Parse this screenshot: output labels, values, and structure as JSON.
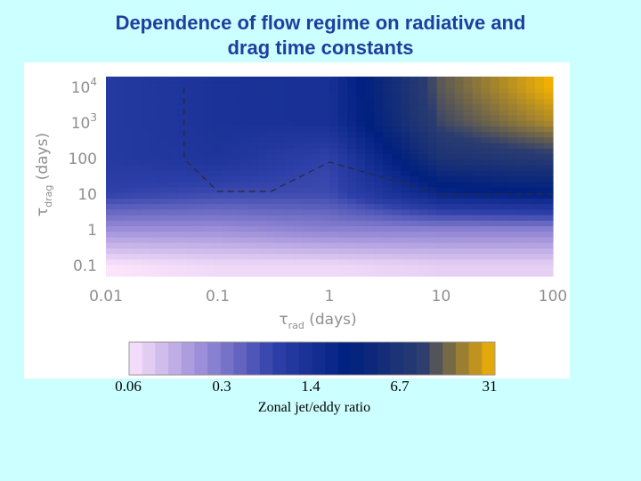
{
  "slide": {
    "title_line1": "Dependence of flow regime on radiative and",
    "title_line2": "drag time constants"
  },
  "chart_data": {
    "type": "heatmap",
    "title": "Dependence of flow regime on radiative and drag time constants",
    "xlabel": "τ_rad (days)",
    "ylabel": "τ_drag (days)",
    "x_scale": "log",
    "y_scale": "log",
    "xlim": [
      0.01,
      100
    ],
    "ylim": [
      0.05,
      20000
    ],
    "x_ticks": [
      0.01,
      0.1,
      1,
      10,
      100
    ],
    "x_tick_labels": [
      "0.01",
      "0.1",
      "1",
      "10",
      "100"
    ],
    "y_ticks": [
      0.1,
      1,
      10,
      100,
      1000,
      10000
    ],
    "y_tick_labels": [
      "0.1",
      "1",
      "10",
      "100",
      "10³",
      "10⁴"
    ],
    "x": [
      0.01,
      0.1,
      1,
      10,
      100
    ],
    "y": [
      0.1,
      1,
      10,
      100,
      1000,
      10000
    ],
    "z_ratio": [
      [
        0.06,
        0.07,
        0.07,
        0.08,
        0.08
      ],
      [
        0.2,
        0.2,
        0.25,
        0.25,
        0.25
      ],
      [
        0.7,
        0.6,
        0.6,
        2.0,
        2.5
      ],
      [
        0.9,
        1.1,
        0.7,
        6,
        8
      ],
      [
        0.9,
        1.2,
        1.3,
        10,
        20
      ],
      [
        0.9,
        1.2,
        1.3,
        12,
        31
      ]
    ],
    "regime_boundary": {
      "style": "dashed",
      "points": [
        [
          0.05,
          10000
        ],
        [
          0.05,
          100
        ],
        [
          0.1,
          12
        ],
        [
          0.3,
          12
        ],
        [
          1,
          80
        ],
        [
          10,
          10
        ],
        [
          100,
          10
        ]
      ]
    },
    "colorbar": {
      "tick_values": [
        0.06,
        0.3,
        1.4,
        6.7,
        31
      ],
      "tick_labels": [
        "0.06",
        "0.3",
        "1.4",
        "6.7",
        "31"
      ],
      "label": "Zonal  jet/eddy ratio",
      "colors": [
        "#fce4fc",
        "#9a8cd8",
        "#2d3fa8",
        "#002080",
        "#2a3c70",
        "#f5b400"
      ]
    }
  }
}
